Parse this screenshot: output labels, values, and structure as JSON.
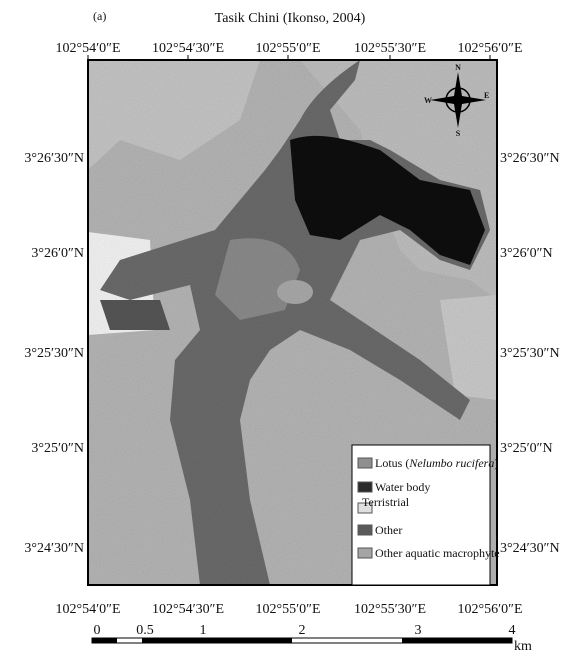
{
  "panel_label": "(a)",
  "title": "Tasik Chini (Ikonso, 2004)",
  "longitudes": [
    "102°54′0″E",
    "102°54′30″E",
    "102°55′0″E",
    "102°55′30″E",
    "102°56′0″E"
  ],
  "latitudes": [
    "3°26′30″N",
    "3°26′0″N",
    "3°25′30″N",
    "3°25′0″N",
    "3°24′30″N"
  ],
  "compass": {
    "north": "N",
    "south": "S",
    "east": "E",
    "west": "W"
  },
  "legend": [
    {
      "prefix": "Lotus (",
      "italic": "Nelumbo rucifera",
      "suffix": ")"
    },
    {
      "label": "Water body"
    },
    {
      "label": "Terristrial"
    },
    {
      "label": "Other"
    },
    {
      "label": "Other aquatic macrophyte"
    }
  ],
  "scale_bar": {
    "labels": [
      "0",
      "0.5",
      "1",
      "2",
      "3",
      "4"
    ],
    "unit": "km"
  }
}
